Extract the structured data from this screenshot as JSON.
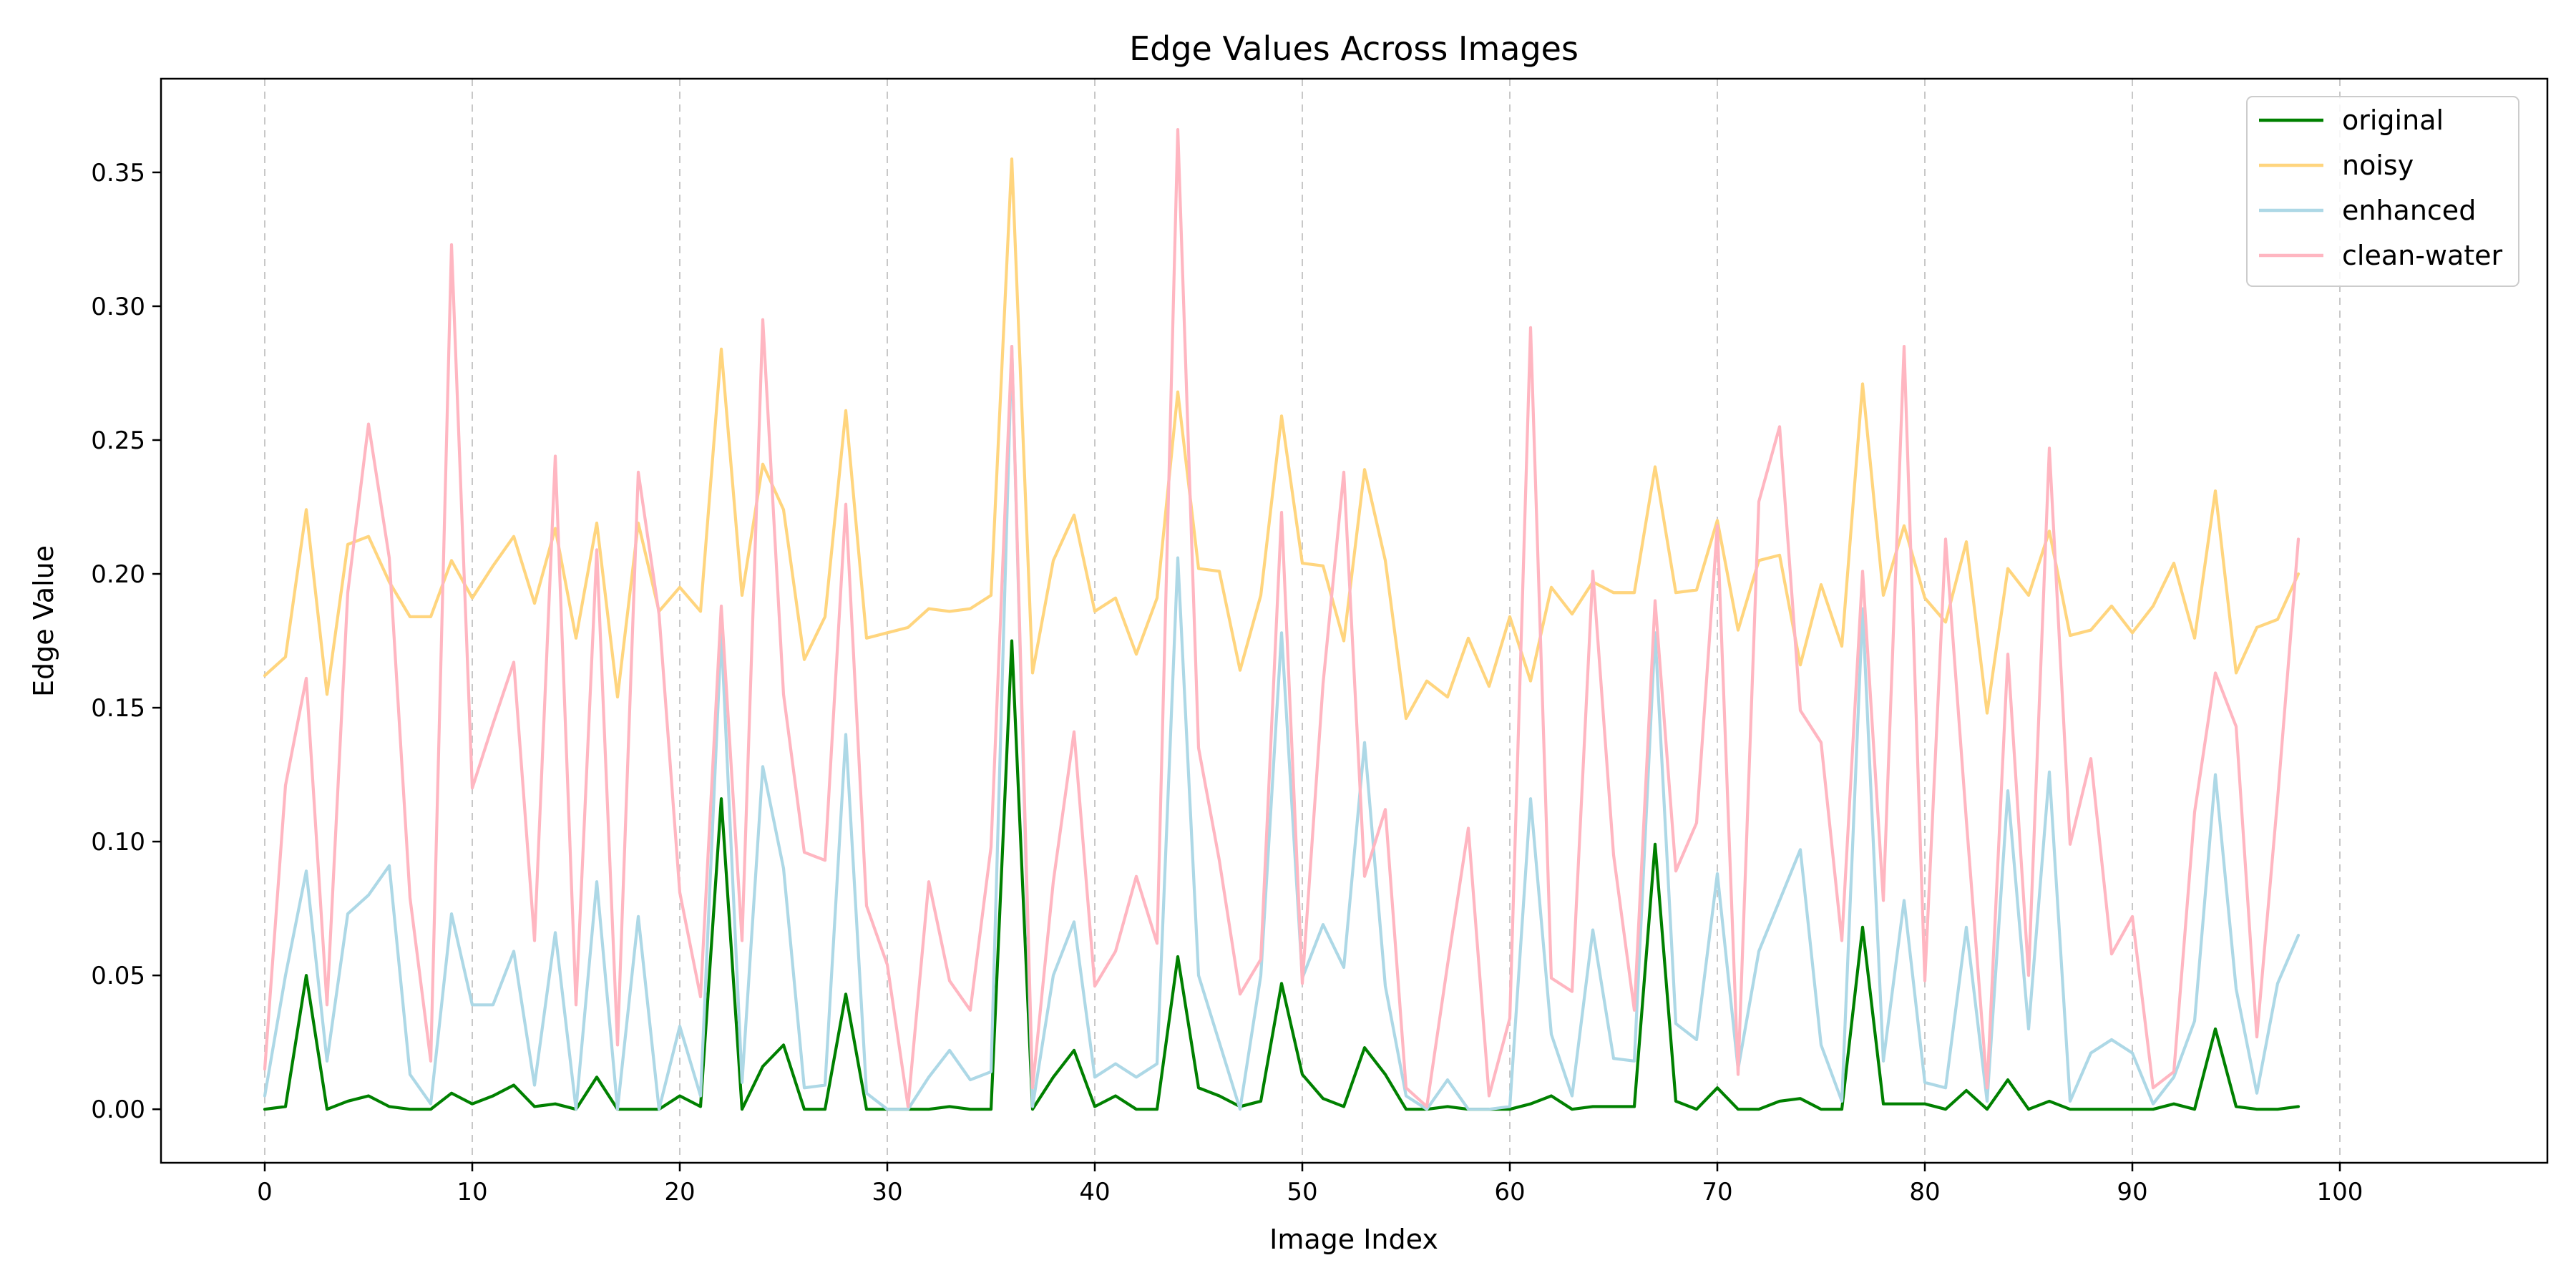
{
  "chart_data": {
    "type": "line",
    "title": "Edge Values Across Images",
    "xlabel": "Image Index",
    "ylabel": "Edge Value",
    "xlim": [
      -5,
      110
    ],
    "ylim": [
      -0.02,
      0.385
    ],
    "xticks": [
      0,
      10,
      20,
      30,
      40,
      50,
      60,
      70,
      80,
      90,
      100
    ],
    "yticks": [
      0.0,
      0.05,
      0.1,
      0.15,
      0.2,
      0.25,
      0.3,
      0.35
    ],
    "ytick_labels": [
      "0.00",
      "0.05",
      "0.10",
      "0.15",
      "0.20",
      "0.25",
      "0.30",
      "0.35"
    ],
    "grid": "vertical dashed",
    "legend_position": "top-right",
    "series": [
      {
        "name": "original",
        "color": "#008000",
        "values": [
          0.0,
          0.001,
          0.05,
          0.0,
          0.003,
          0.005,
          0.001,
          0.0,
          0.0,
          0.006,
          0.002,
          0.005,
          0.009,
          0.001,
          0.002,
          0.0,
          0.012,
          0.0,
          0.0,
          0.0,
          0.005,
          0.001,
          0.116,
          0.0,
          0.016,
          0.024,
          0.0,
          0.0,
          0.043,
          0.0,
          0.0,
          0.0,
          0.0,
          0.001,
          0.0,
          0.0,
          0.175,
          0.0,
          0.012,
          0.022,
          0.001,
          0.005,
          0.0,
          0.0,
          0.057,
          0.008,
          0.005,
          0.001,
          0.003,
          0.047,
          0.013,
          0.004,
          0.001,
          0.023,
          0.013,
          0.0,
          0.0,
          0.001,
          0.0,
          0.0,
          0.0,
          0.002,
          0.005,
          0.0,
          0.001,
          0.001,
          0.001,
          0.099,
          0.003,
          0.0,
          0.008,
          0.0,
          0.0,
          0.003,
          0.004,
          0.0,
          0.0,
          0.068,
          0.002,
          0.002,
          0.002,
          0.0,
          0.007,
          0.0,
          0.011,
          0.0,
          0.003,
          0.0,
          0.0,
          0.0,
          0.0,
          0.0,
          0.002,
          0.0,
          0.03,
          0.001,
          0.0,
          0.0,
          0.001
        ]
      },
      {
        "name": "noisy",
        "color": "#FFD57E",
        "values": [
          0.162,
          0.169,
          0.224,
          0.155,
          0.211,
          0.214,
          0.197,
          0.184,
          0.184,
          0.205,
          0.191,
          0.203,
          0.214,
          0.189,
          0.217,
          0.176,
          0.219,
          0.154,
          0.219,
          0.186,
          0.195,
          0.186,
          0.284,
          0.192,
          0.241,
          0.224,
          0.168,
          0.184,
          0.261,
          0.176,
          0.178,
          0.18,
          0.187,
          0.186,
          0.187,
          0.192,
          0.355,
          0.163,
          0.205,
          0.222,
          0.186,
          0.191,
          0.17,
          0.191,
          0.268,
          0.202,
          0.201,
          0.164,
          0.192,
          0.259,
          0.204,
          0.203,
          0.175,
          0.239,
          0.205,
          0.146,
          0.16,
          0.154,
          0.176,
          0.158,
          0.184,
          0.16,
          0.195,
          0.185,
          0.197,
          0.193,
          0.193,
          0.24,
          0.193,
          0.194,
          0.22,
          0.179,
          0.205,
          0.207,
          0.166,
          0.196,
          0.173,
          0.271,
          0.192,
          0.218,
          0.191,
          0.182,
          0.212,
          0.148,
          0.202,
          0.192,
          0.216,
          0.177,
          0.179,
          0.188,
          0.178,
          0.188,
          0.204,
          0.176,
          0.231,
          0.163,
          0.18,
          0.183,
          0.2
        ]
      },
      {
        "name": "enhanced",
        "color": "#ADD8E6",
        "values": [
          0.005,
          0.05,
          0.089,
          0.018,
          0.073,
          0.08,
          0.091,
          0.013,
          0.002,
          0.073,
          0.039,
          0.039,
          0.059,
          0.009,
          0.066,
          0.0,
          0.085,
          0.0,
          0.072,
          0.0,
          0.031,
          0.005,
          0.178,
          0.01,
          0.128,
          0.09,
          0.008,
          0.009,
          0.14,
          0.006,
          0.0,
          0.0,
          0.012,
          0.022,
          0.011,
          0.014,
          0.285,
          0.001,
          0.05,
          0.07,
          0.012,
          0.017,
          0.012,
          0.017,
          0.206,
          0.05,
          0.025,
          0.0,
          0.05,
          0.178,
          0.049,
          0.069,
          0.053,
          0.137,
          0.046,
          0.005,
          0.0,
          0.011,
          0.0,
          0.0,
          0.001,
          0.116,
          0.028,
          0.005,
          0.067,
          0.019,
          0.018,
          0.178,
          0.032,
          0.026,
          0.088,
          0.015,
          0.059,
          0.078,
          0.097,
          0.024,
          0.003,
          0.187,
          0.018,
          0.078,
          0.01,
          0.008,
          0.068,
          0.003,
          0.119,
          0.03,
          0.126,
          0.003,
          0.021,
          0.026,
          0.021,
          0.002,
          0.012,
          0.033,
          0.125,
          0.045,
          0.006,
          0.047,
          0.065
        ]
      },
      {
        "name": "clean-water",
        "color": "#FFB6C1",
        "values": [
          0.015,
          0.121,
          0.161,
          0.039,
          0.193,
          0.256,
          0.206,
          0.079,
          0.018,
          0.323,
          0.12,
          0.144,
          0.167,
          0.063,
          0.244,
          0.039,
          0.209,
          0.024,
          0.238,
          0.185,
          0.081,
          0.042,
          0.188,
          0.063,
          0.295,
          0.155,
          0.096,
          0.093,
          0.226,
          0.076,
          0.054,
          0.001,
          0.085,
          0.048,
          0.037,
          0.098,
          0.285,
          0.008,
          0.085,
          0.141,
          0.046,
          0.059,
          0.087,
          0.062,
          0.366,
          0.135,
          0.093,
          0.043,
          0.056,
          0.223,
          0.047,
          0.159,
          0.238,
          0.087,
          0.112,
          0.008,
          0.001,
          0.054,
          0.105,
          0.005,
          0.034,
          0.292,
          0.049,
          0.044,
          0.201,
          0.095,
          0.037,
          0.19,
          0.089,
          0.107,
          0.218,
          0.013,
          0.227,
          0.255,
          0.149,
          0.137,
          0.063,
          0.201,
          0.078,
          0.285,
          0.048,
          0.213,
          0.108,
          0.008,
          0.17,
          0.05,
          0.247,
          0.099,
          0.131,
          0.058,
          0.072,
          0.008,
          0.014,
          0.111,
          0.163,
          0.143,
          0.027,
          0.116,
          0.213
        ]
      }
    ]
  }
}
